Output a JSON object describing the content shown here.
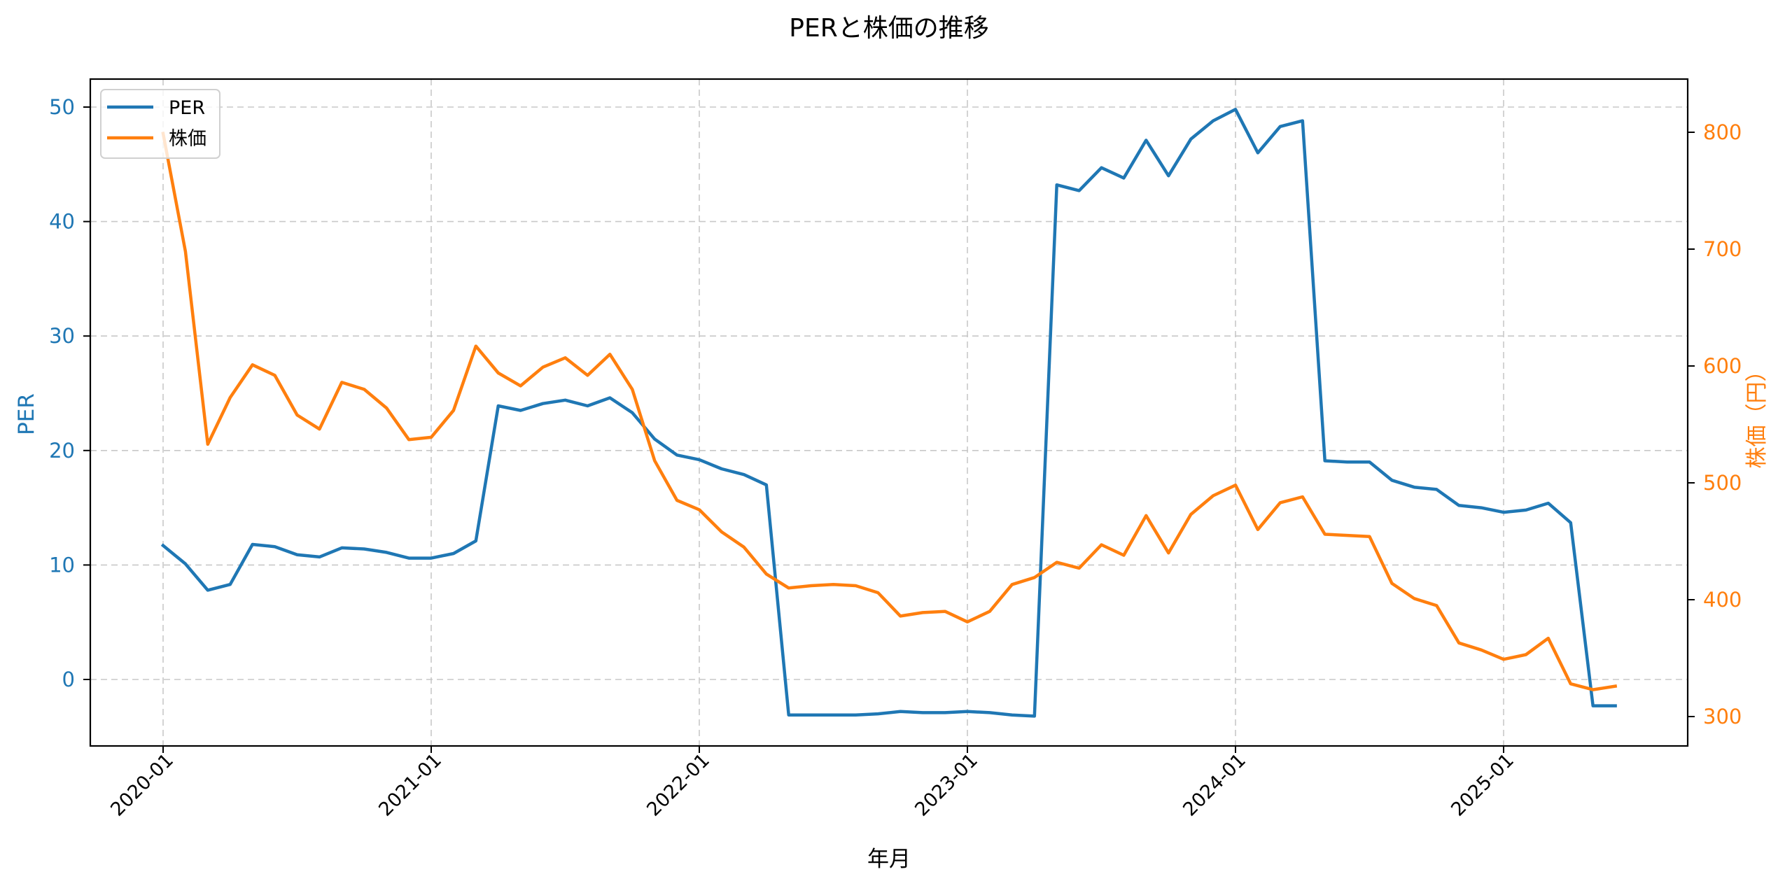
{
  "chart_data": {
    "type": "line",
    "title": "PERと株価の推移",
    "xlabel": "年月",
    "ylabel": "PER",
    "ylabel_right": "株価（円）",
    "grid": true,
    "legend_position": "upper left",
    "legend": [
      "PER",
      "株価"
    ],
    "colors": {
      "PER": "#1f77b4",
      "株価": "#ff7f0e"
    },
    "x_tick_labels": [
      "2020-01",
      "2021-01",
      "2022-01",
      "2023-01",
      "2024-01",
      "2025-01"
    ],
    "y_left_ticks": [
      0,
      10,
      20,
      30,
      40,
      50
    ],
    "y_right_ticks": [
      300,
      400,
      500,
      600,
      700,
      800
    ],
    "ylim": [
      -6,
      52.4
    ],
    "ylim_right": [
      276,
      845
    ],
    "x": [
      "2020-01",
      "2020-02",
      "2020-03",
      "2020-04",
      "2020-05",
      "2020-06",
      "2020-07",
      "2020-08",
      "2020-09",
      "2020-10",
      "2020-11",
      "2020-12",
      "2021-01",
      "2021-02",
      "2021-03",
      "2021-04",
      "2021-05",
      "2021-06",
      "2021-07",
      "2021-08",
      "2021-09",
      "2021-10",
      "2021-11",
      "2021-12",
      "2022-01",
      "2022-02",
      "2022-03",
      "2022-04",
      "2022-05",
      "2022-06",
      "2022-07",
      "2022-08",
      "2022-09",
      "2022-10",
      "2022-11",
      "2022-12",
      "2023-01",
      "2023-02",
      "2023-03",
      "2023-04",
      "2023-05",
      "2023-06",
      "2023-07",
      "2023-08",
      "2023-09",
      "2023-10",
      "2023-11",
      "2023-12",
      "2024-01",
      "2024-02",
      "2024-03",
      "2024-04",
      "2024-05",
      "2024-06",
      "2024-07",
      "2024-08",
      "2024-09",
      "2024-10",
      "2024-11",
      "2024-12",
      "2025-01",
      "2025-02",
      "2025-03",
      "2025-04",
      "2025-05",
      "2025-06"
    ],
    "series": [
      {
        "name": "PER",
        "axis": "left",
        "values": [
          11.7,
          10.1,
          7.8,
          8.3,
          11.8,
          11.6,
          10.9,
          10.7,
          11.5,
          11.4,
          11.1,
          10.6,
          10.6,
          11.0,
          12.1,
          23.9,
          23.5,
          24.1,
          24.4,
          23.9,
          24.6,
          23.3,
          21.0,
          19.6,
          19.2,
          18.4,
          17.9,
          17.0,
          -3.1,
          -3.1,
          -3.1,
          -3.1,
          -3.0,
          -2.8,
          -2.9,
          -2.9,
          -2.8,
          -2.9,
          -3.1,
          -3.2,
          43.2,
          42.7,
          44.7,
          43.8,
          47.1,
          44.0,
          47.2,
          48.8,
          49.8,
          46.0,
          48.3,
          48.8,
          19.1,
          19.0,
          19.0,
          17.4,
          16.8,
          16.6,
          15.2,
          15.0,
          14.6,
          14.8,
          15.4,
          13.7,
          -2.3,
          -2.3
        ]
      },
      {
        "name": "株価",
        "axis": "right",
        "values": [
          799,
          698,
          533,
          573,
          601,
          592,
          558,
          546,
          586,
          580,
          564,
          537,
          539,
          562,
          617,
          594,
          583,
          599,
          607,
          592,
          610,
          580,
          519,
          485,
          477,
          458,
          445,
          422,
          410,
          412,
          413,
          412,
          406,
          386,
          389,
          390,
          381,
          390,
          413,
          419,
          432,
          427,
          447,
          438,
          472,
          440,
          473,
          489,
          498,
          460,
          483,
          488,
          456,
          455,
          454,
          414,
          401,
          395,
          363,
          357,
          349,
          353,
          367,
          328,
          323,
          326
        ]
      }
    ]
  },
  "figure": {
    "title": "PERと株価の推移",
    "xlabel": "年月",
    "ylabel_left": "PER",
    "ylabel_right": "株価（円）",
    "legend": {
      "items": [
        {
          "label": "PER",
          "color": "#1f77b4"
        },
        {
          "label": "株価",
          "color": "#ff7f0e"
        }
      ]
    }
  }
}
